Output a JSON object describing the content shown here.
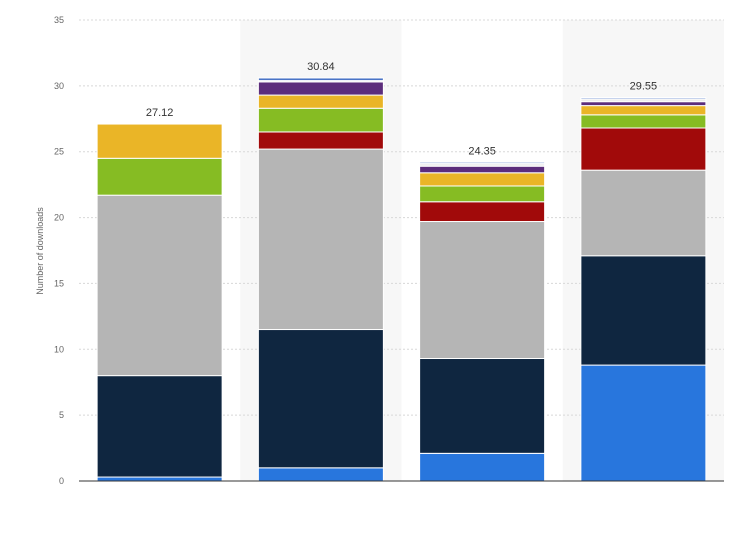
{
  "chart_data": {
    "type": "bar",
    "stacked": true,
    "ylabel": "Number of downloads",
    "ylim": [
      0,
      35
    ],
    "yticks": [
      0,
      5,
      10,
      15,
      20,
      25,
      30,
      35
    ],
    "grid": true,
    "categories": [
      "",
      "",
      "",
      ""
    ],
    "series": [
      {
        "color": "#2876dd",
        "values": [
          0.3,
          1.0,
          2.1,
          8.8
        ]
      },
      {
        "color": "#0f2640",
        "values": [
          7.7,
          10.5,
          7.2,
          8.3
        ]
      },
      {
        "color": "#b5b5b5",
        "values": [
          13.7,
          13.7,
          10.4,
          6.5
        ]
      },
      {
        "color": "#a10a0a",
        "values": [
          0,
          1.3,
          1.5,
          3.2
        ]
      },
      {
        "color": "#86bc23",
        "values": [
          2.8,
          1.8,
          1.2,
          1.0
        ]
      },
      {
        "color": "#eab527",
        "values": [
          2.6,
          1.0,
          1.0,
          0.7
        ]
      },
      {
        "color": "#5c2d7c",
        "values": [
          0,
          1.0,
          0.5,
          0.3
        ]
      },
      {
        "color": "#eeeeee",
        "values": [
          0,
          0.1,
          0.2,
          0.2
        ]
      },
      {
        "color": "#4a74c6",
        "values": [
          0,
          0.2,
          0.1,
          0.1
        ]
      }
    ],
    "totals": [
      "27.12",
      "30.84",
      "24.35",
      "29.55"
    ]
  }
}
